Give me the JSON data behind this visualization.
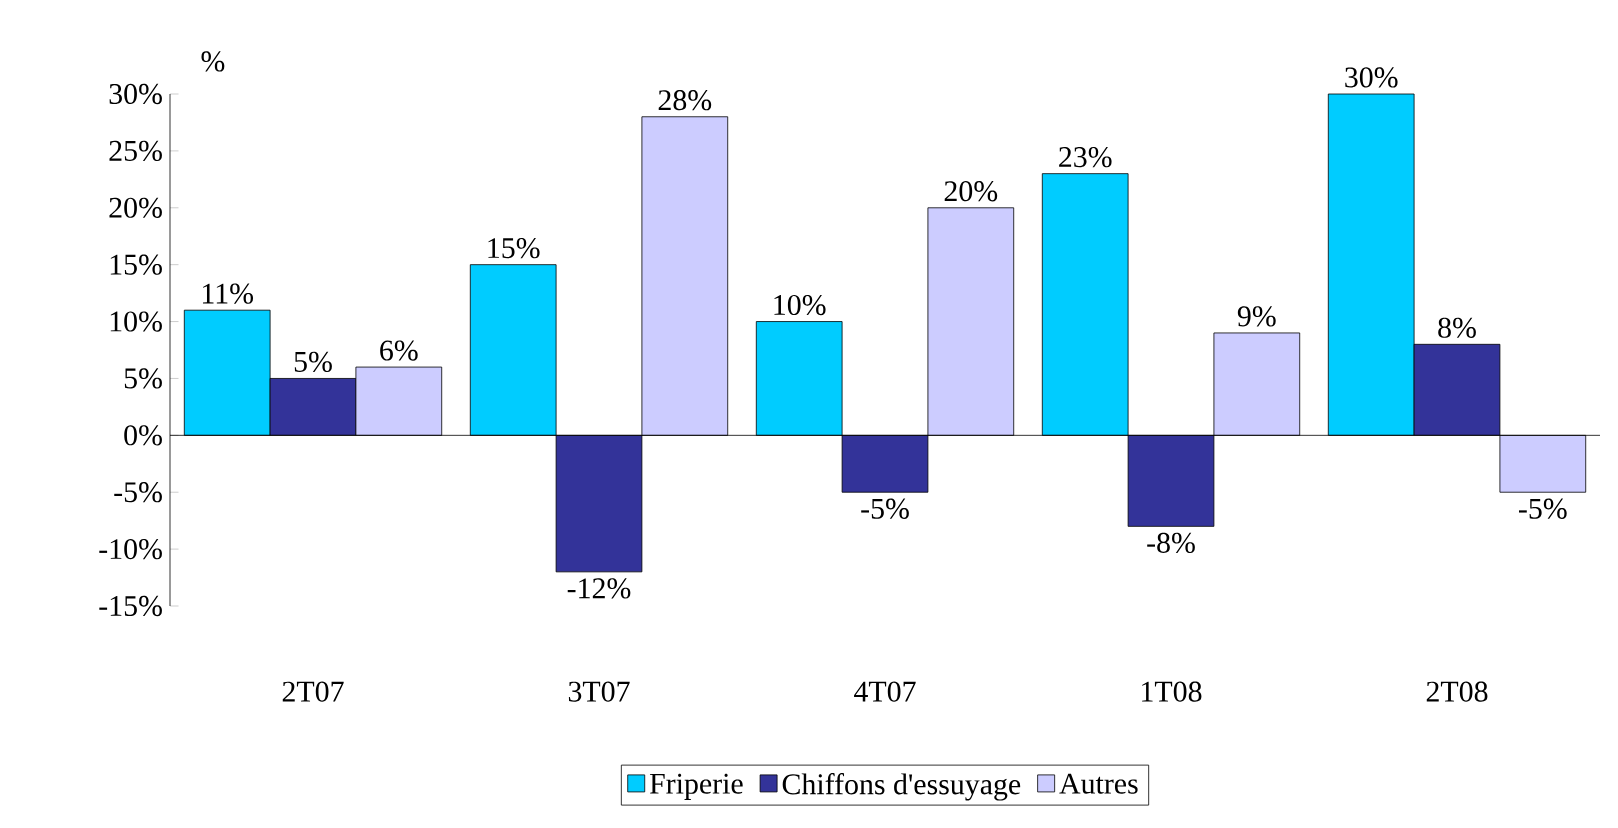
{
  "chart_data": {
    "type": "bar",
    "ylabel": "%",
    "categories": [
      "2T07",
      "3T07",
      "4T07",
      "1T08",
      "2T08"
    ],
    "series": [
      {
        "name": "Friperie",
        "color": "#00ccff",
        "values": [
          11,
          15,
          10,
          23,
          30
        ],
        "value_labels": [
          "11%",
          "15%",
          "10%",
          "23%",
          "30%"
        ]
      },
      {
        "name": "Chiffons d'essuyage",
        "color": "#333399",
        "values": [
          5,
          -12,
          -5,
          -8,
          8
        ],
        "value_labels": [
          "5%",
          "-12%",
          "-5%",
          "-8%",
          "8%"
        ]
      },
      {
        "name": "Autres",
        "color": "#ccccff",
        "values": [
          6,
          28,
          20,
          9,
          -5
        ],
        "value_labels": [
          "6%",
          "28%",
          "20%",
          "9%",
          "-5%"
        ]
      }
    ],
    "ylim": [
      -15,
      30
    ],
    "yticks": [
      {
        "value": -15,
        "label": "-15%"
      },
      {
        "value": -10,
        "label": "-10%"
      },
      {
        "value": -5,
        "label": "-5%"
      },
      {
        "value": 0,
        "label": "0%"
      },
      {
        "value": 5,
        "label": "5%"
      },
      {
        "value": 10,
        "label": "10%"
      },
      {
        "value": 15,
        "label": "15%"
      },
      {
        "value": 20,
        "label": "20%"
      },
      {
        "value": 25,
        "label": "25%"
      },
      {
        "value": 30,
        "label": "30%"
      }
    ],
    "legend": "bottom"
  }
}
